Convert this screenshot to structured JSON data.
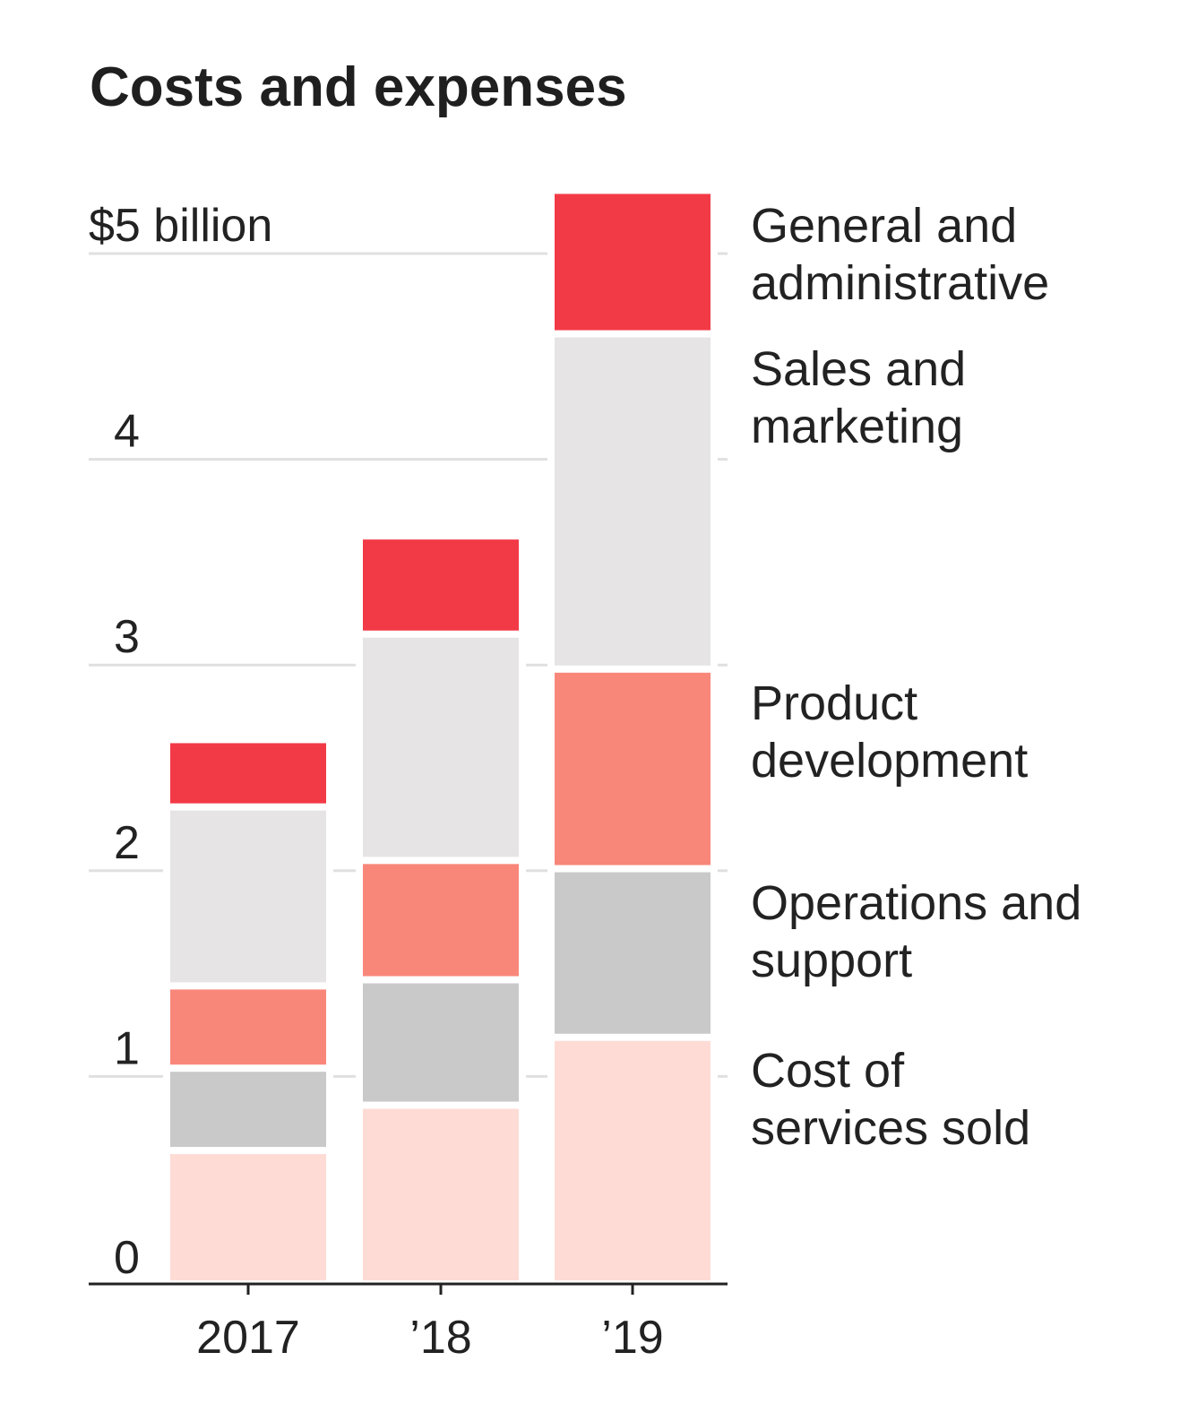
{
  "chart_data": {
    "type": "bar",
    "stacked": true,
    "title": "Costs and expenses",
    "xlabel": "",
    "ylabel": "",
    "ylim": [
      0,
      5
    ],
    "yticks": [
      0,
      1,
      2,
      3,
      4,
      5
    ],
    "ytick_labels": [
      "0",
      "1",
      "2",
      "3",
      "4",
      "$5 billion"
    ],
    "categories": [
      "2017",
      "’18",
      "’19"
    ],
    "grid": true,
    "legend_placement": "right, aligned with top bar",
    "series": [
      {
        "name": "Cost of services sold",
        "label_lines": [
          "Cost of",
          "services sold"
        ],
        "color": "#fedbd5",
        "values": [
          0.64,
          0.86,
          1.19
        ]
      },
      {
        "name": "Operations and support",
        "label_lines": [
          "Operations and",
          "support"
        ],
        "color": "#c9c9c9",
        "values": [
          0.4,
          0.61,
          0.82
        ]
      },
      {
        "name": "Product development",
        "label_lines": [
          "Product",
          "development"
        ],
        "color": "#f8877a",
        "values": [
          0.4,
          0.58,
          0.97
        ]
      },
      {
        "name": "Sales and marketing",
        "label_lines": [
          "Sales and",
          "marketing"
        ],
        "color": "#e6e4e5",
        "values": [
          0.87,
          1.1,
          1.63
        ]
      },
      {
        "name": "General and administrative",
        "label_lines": [
          "General and",
          "administrative"
        ],
        "color": "#f23a46",
        "values": [
          0.31,
          0.46,
          0.68
        ]
      }
    ]
  }
}
